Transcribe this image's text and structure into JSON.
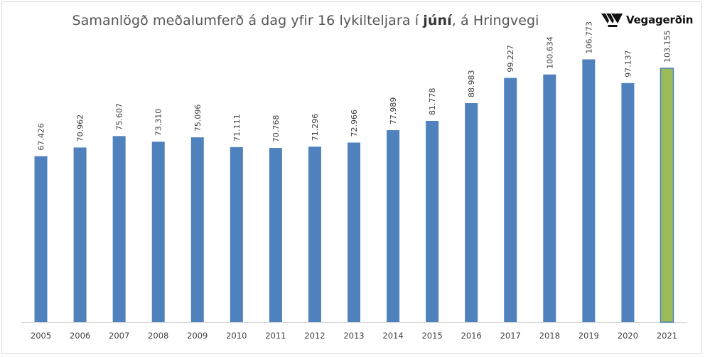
{
  "header": {
    "title_before": "Samanlögð meðalumferð á dag yfir 16 lykilteljara í ",
    "title_bold": "júní",
    "title_after": ", á Hringvegi",
    "logo_text": "Vegagerðin",
    "logo_icon": "vegagerdin-logo-icon"
  },
  "chart_data": {
    "type": "bar",
    "categories": [
      "2005",
      "2006",
      "2007",
      "2008",
      "2009",
      "2010",
      "2011",
      "2012",
      "2013",
      "2014",
      "2015",
      "2016",
      "2017",
      "2018",
      "2019",
      "2020",
      "2021"
    ],
    "values": [
      67426,
      70962,
      75607,
      73310,
      75096,
      71111,
      70768,
      71296,
      72966,
      77989,
      81778,
      88983,
      99227,
      100634,
      106773,
      97137,
      103155
    ],
    "value_labels": [
      "67.426",
      "70.962",
      "75.607",
      "73.310",
      "75.096",
      "71.111",
      "70.768",
      "71.296",
      "72.966",
      "77.989",
      "81.778",
      "88.983",
      "99.227",
      "100.634",
      "106.773",
      "97.137",
      "103.155"
    ],
    "ylim": [
      0,
      115000
    ],
    "grid": false,
    "legend": "none",
    "highlight_index": 16,
    "colors": {
      "bar": "#4f81bd",
      "highlight": "#9bbb59",
      "highlight_border": "#4f81bd",
      "axis": "#d9d9d9"
    }
  }
}
